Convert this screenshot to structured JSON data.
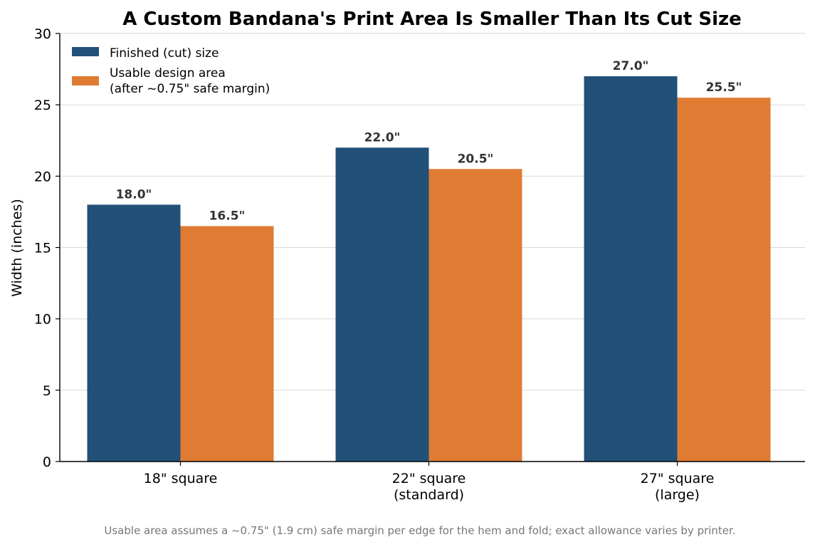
{
  "chart_data": {
    "type": "bar",
    "title": "A Custom Bandana's Print Area Is Smaller Than Its Cut Size",
    "xlabel": "",
    "ylabel": "Width (inches)",
    "ylim": [
      0,
      30
    ],
    "yticks": [
      0,
      5,
      10,
      15,
      20,
      25,
      30
    ],
    "grid": "horizontal",
    "legend_position": "top-left",
    "categories": [
      [
        "18\" square"
      ],
      [
        "22\" square",
        "(standard)"
      ],
      [
        "27\" square",
        "(large)"
      ]
    ],
    "series": [
      {
        "name": "Finished (cut) size",
        "legend_lines": [
          "Finished (cut) size"
        ],
        "color": "#215078",
        "values": [
          18.0,
          22.0,
          27.0
        ],
        "labels": [
          "18.0\"",
          "22.0\"",
          "27.0\""
        ]
      },
      {
        "name": "Usable design area (after ~0.75\" safe margin)",
        "legend_lines": [
          "Usable design area",
          "(after ~0.75\" safe margin)"
        ],
        "color": "#E07B33",
        "values": [
          16.5,
          20.5,
          25.5
        ],
        "labels": [
          "16.5\"",
          "20.5\"",
          "25.5\""
        ]
      }
    ],
    "footnote": "Usable area assumes a ~0.75\" (1.9 cm) safe margin per edge for the hem and fold; exact allowance varies by printer."
  }
}
